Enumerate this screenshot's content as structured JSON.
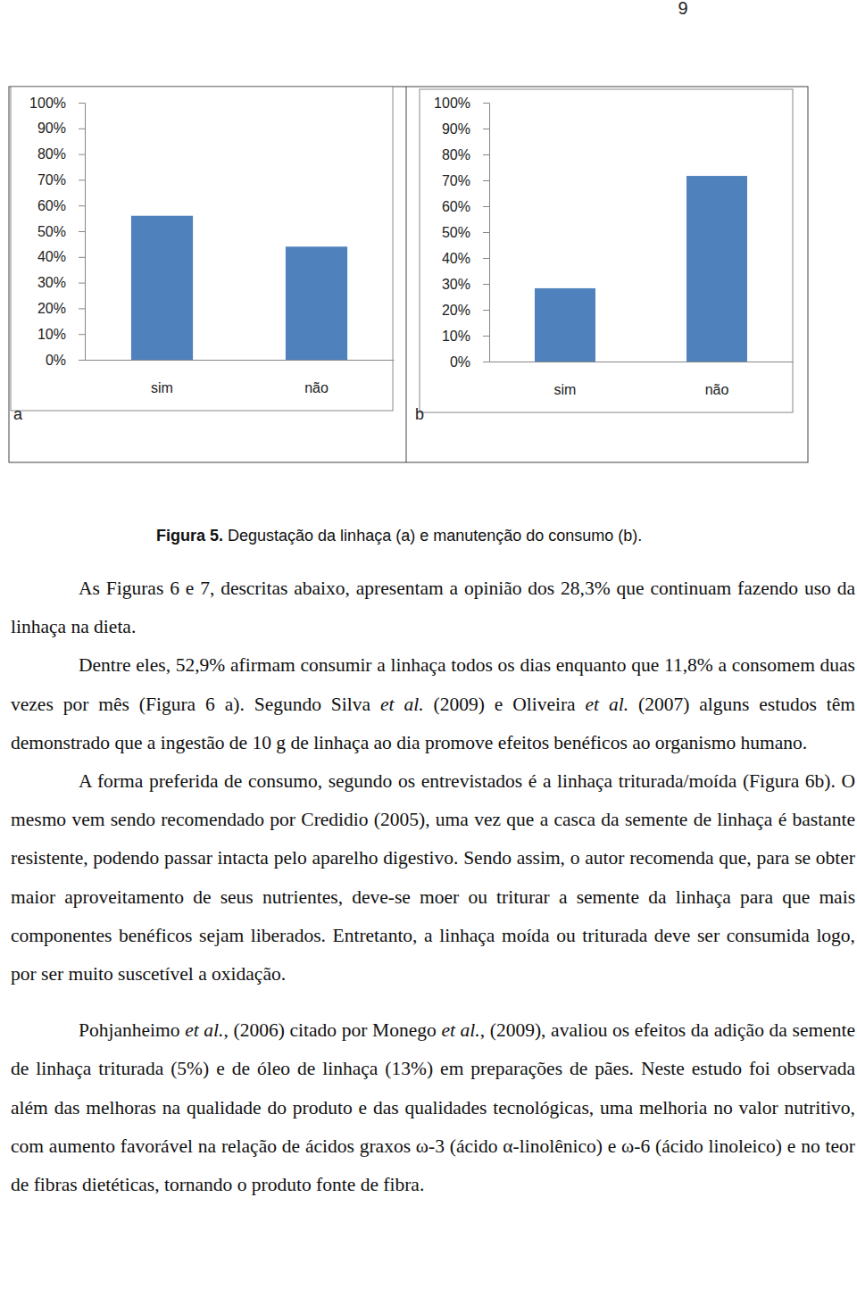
{
  "chart_data": [
    {
      "type": "bar",
      "categories": [
        "sim",
        "não"
      ],
      "values": [
        56,
        44
      ],
      "color": "#4f81bd",
      "ylim": [
        0,
        100
      ],
      "yticks": [
        {
          "value": 0,
          "label": "0%"
        },
        {
          "value": 10,
          "label": "10%"
        },
        {
          "value": 20,
          "label": "20%"
        },
        {
          "value": 30,
          "label": "30%"
        },
        {
          "value": 40,
          "label": "40%"
        },
        {
          "value": 50,
          "label": "50%"
        },
        {
          "value": 60,
          "label": "60%"
        },
        {
          "value": 70,
          "label": "70%"
        },
        {
          "value": 80,
          "label": "80%"
        },
        {
          "value": 90,
          "label": "90%"
        },
        {
          "value": 100,
          "label": "100%"
        }
      ],
      "grid": false
    },
    {
      "type": "bar",
      "categories": [
        "sim",
        "não"
      ],
      "values": [
        28.3,
        71.7
      ],
      "color": "#4f81bd",
      "ylim": [
        0,
        100
      ],
      "yticks": [
        {
          "value": 0,
          "label": "0%"
        },
        {
          "value": 10,
          "label": "10%"
        },
        {
          "value": 20,
          "label": "20%"
        },
        {
          "value": 30,
          "label": "30%"
        },
        {
          "value": 40,
          "label": "40%"
        },
        {
          "value": 50,
          "label": "50%"
        },
        {
          "value": 60,
          "label": "60%"
        },
        {
          "value": 70,
          "label": "70%"
        },
        {
          "value": 80,
          "label": "80%"
        },
        {
          "value": 90,
          "label": "90%"
        },
        {
          "value": 100,
          "label": "100%"
        }
      ],
      "grid": false
    }
  ],
  "document": {
    "page_number": "9",
    "panel_labels": [
      "a",
      "b"
    ],
    "caption": {
      "label": "Figura 5.",
      "text": "Degustação da linhaça (a) e manutenção do consumo (b)."
    },
    "paragraphs": [
      [
        {
          "text": "As Figuras 6 e 7, descritas abaixo, apresentam a opinião dos 28,3% que continuam fazendo uso da linhaça na dieta."
        }
      ],
      [
        {
          "text": "Dentre eles, 52,9% afirmam consumir a linhaça todos os dias enquanto que 11,8% a consomem duas vezes por mês (Figura 6 a). Segundo Silva "
        },
        {
          "text": "et al.",
          "italic": true
        },
        {
          "text": " (2009) e Oliveira "
        },
        {
          "text": "et al.",
          "italic": true
        },
        {
          "text": " (2007) alguns estudos têm demonstrado que a ingestão de 10 g de linhaça ao dia promove efeitos benéficos ao organismo humano."
        }
      ],
      [
        {
          "text": "A forma preferida de consumo, segundo os entrevistados é a linhaça triturada/moída (Figura 6b). O mesmo vem sendo recomendado por Credidio (2005), uma vez que a casca da semente de linhaça é bastante resistente, podendo passar intacta pelo aparelho digestivo. Sendo assim, o autor recomenda que, para se obter maior aproveitamento de seus nutrientes, deve-se moer ou triturar a semente da linhaça para que mais componentes benéficos sejam liberados. Entretanto, a linhaça moída ou triturada deve ser consumida logo, por ser muito suscetível a oxidação."
        }
      ],
      [
        {
          "text": "Pohjanheimo "
        },
        {
          "text": "et al.",
          "italic": true
        },
        {
          "text": ", (2006)  citado por Monego "
        },
        {
          "text": "et al.",
          "italic": true
        },
        {
          "text": ", (2009), avaliou os efeitos da adição da semente de linhaça triturada (5%) e de óleo de linhaça (13%) em preparações de pães. Neste estudo foi observada além das melhoras na qualidade do produto e das qualidades tecnológicas, uma melhoria no valor nutritivo, com aumento favorável na relação de ácidos graxos ω-3 (ácido α-linolênico) e ω-6 (ácido linoleico) e no teor de fibras dietéticas, tornando o produto fonte de fibra."
        }
      ]
    ]
  }
}
